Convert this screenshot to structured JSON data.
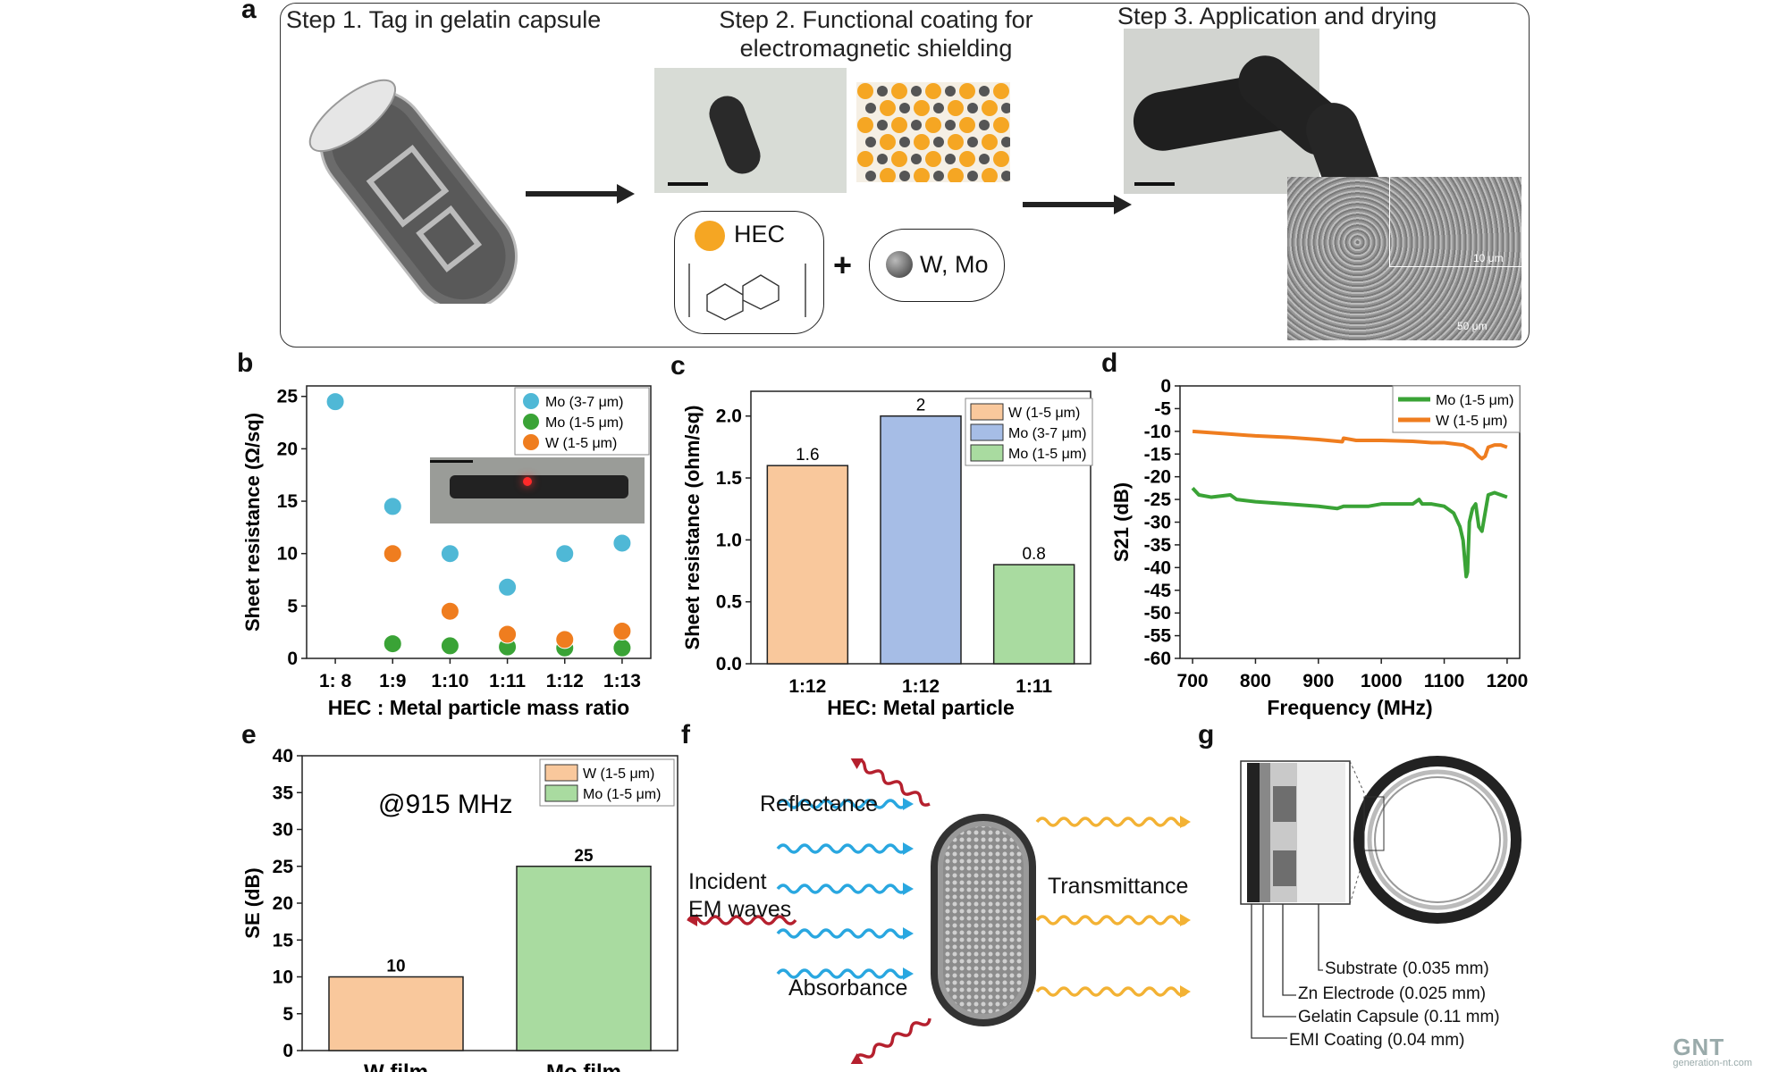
{
  "panel_a": {
    "letter": "a",
    "step1": "Step 1. Tag in gelatin capsule",
    "step2_line1": "Step 2. Functional coating for",
    "step2_line2": "electromagnetic shielding",
    "step3": "Step 3. Application and drying",
    "hec_label": "HEC",
    "plus": "+",
    "metal_label": "W, Mo",
    "sem_inset_scale": "10 μm",
    "sem_scale": "50 μm",
    "colors": {
      "hec": "#f5a623",
      "metal": "#555555",
      "capsule_black": "#2a2a2a"
    }
  },
  "chart_data": [
    {
      "panel": "b",
      "type": "scatter",
      "xlabel": "HEC : Metal particle mass ratio",
      "ylabel": "Sheet resistance (Ω/sq)",
      "categories": [
        "1: 8",
        "1:9",
        "1:10",
        "1:11",
        "1:12",
        "1:13"
      ],
      "ylim": [
        0,
        26
      ],
      "yticks": [
        0,
        5,
        10,
        15,
        20,
        25
      ],
      "legend_position": "top-right",
      "series": [
        {
          "name": "Mo (3-7 μm)",
          "color": "#4fb8d6",
          "values": [
            24.5,
            14.5,
            10,
            6.8,
            10,
            11
          ]
        },
        {
          "name": "Mo (1-5 μm)",
          "color": "#3aa336",
          "values": [
            null,
            1.4,
            1.2,
            1.1,
            1.0,
            1.0
          ]
        },
        {
          "name": "W (1-5 μm)",
          "color": "#ef7d1f",
          "values": [
            null,
            10,
            4.5,
            2.3,
            1.8,
            2.6
          ]
        }
      ]
    },
    {
      "panel": "c",
      "type": "bar",
      "xlabel": "HEC: Metal particle",
      "ylabel": "Sheet resistance (ohm/sq)",
      "categories": [
        "1:12",
        "1:12",
        "1:11"
      ],
      "ylim": [
        0,
        2.2
      ],
      "yticks": [
        "0.0",
        "0.5",
        "1.0",
        "1.5",
        "2.0"
      ],
      "legend_position": "top-right",
      "series": [
        {
          "name": "W (1-5 μm)",
          "color": "#f9c89c",
          "value": 1.6,
          "label": "1.6"
        },
        {
          "name": "Mo (3-7 μm)",
          "color": "#a6bde6",
          "value": 2.0,
          "label": "2"
        },
        {
          "name": "Mo (1-5 μm)",
          "color": "#a9dba0",
          "value": 0.8,
          "label": "0.8"
        }
      ]
    },
    {
      "panel": "d",
      "type": "line",
      "xlabel": "Frequency (MHz)",
      "ylabel": "S21 (dB)",
      "xlim": [
        680,
        1220
      ],
      "ylim": [
        -60,
        0
      ],
      "xticks": [
        700,
        800,
        900,
        1000,
        1100,
        1200
      ],
      "yticks": [
        0,
        -5,
        -10,
        -15,
        -20,
        -25,
        -30,
        -35,
        -40,
        -45,
        -50,
        -55,
        -60
      ],
      "legend_position": "top-right",
      "series": [
        {
          "name": "Mo (1-5 μm)",
          "color": "#3aa336",
          "x": [
            700,
            710,
            730,
            760,
            770,
            800,
            850,
            900,
            930,
            940,
            980,
            1000,
            1050,
            1060,
            1065,
            1080,
            1100,
            1115,
            1125,
            1130,
            1135,
            1137,
            1140,
            1145,
            1150,
            1155,
            1160,
            1165,
            1170,
            1180,
            1190,
            1200
          ],
          "y": [
            -22.5,
            -24,
            -24.5,
            -24,
            -25,
            -25.5,
            -26,
            -26.5,
            -27,
            -26.5,
            -26.5,
            -26,
            -26,
            -25,
            -26,
            -26,
            -26.5,
            -28,
            -31,
            -34,
            -42,
            -41,
            -30,
            -27,
            -26,
            -31,
            -32,
            -28,
            -24,
            -23.5,
            -24,
            -24.5
          ]
        },
        {
          "name": "W (1-5 μm)",
          "color": "#ef7d1f",
          "x": [
            700,
            750,
            800,
            850,
            900,
            938,
            940,
            960,
            1000,
            1050,
            1080,
            1100,
            1130,
            1145,
            1155,
            1160,
            1165,
            1170,
            1180,
            1190,
            1200
          ],
          "y": [
            -10,
            -10.5,
            -11,
            -11.3,
            -11.8,
            -12.3,
            -11.5,
            -12,
            -12,
            -12.2,
            -12.5,
            -12.5,
            -13,
            -14,
            -15.5,
            -16,
            -15.5,
            -13.5,
            -13,
            -13,
            -13.5
          ]
        }
      ]
    },
    {
      "panel": "e",
      "type": "bar",
      "xlabel": "",
      "ylabel": "SE (dB)",
      "annotation": "@915 MHz",
      "categories": [
        "W film",
        "Mo film"
      ],
      "ylim": [
        0,
        40
      ],
      "yticks": [
        0,
        5,
        10,
        15,
        20,
        25,
        30,
        35,
        40
      ],
      "legend_position": "top-right",
      "series": [
        {
          "name": "W (1-5 μm)",
          "color": "#f9c89c",
          "value": 10,
          "label": "10"
        },
        {
          "name": "Mo (1-5 μm)",
          "color": "#a9dba0",
          "value": 25,
          "label": "25"
        }
      ]
    }
  ],
  "panel_f": {
    "letter": "f",
    "reflectance": "Reflectance",
    "incident_line1": "Incident",
    "incident_line2": "EM waves",
    "transmittance": "Transmittance",
    "absorbance": "Absorbance",
    "colors": {
      "incident": "#29a7e0",
      "reflected": "#b5202e",
      "transmitted": "#f3b234"
    }
  },
  "panel_g": {
    "letter": "g",
    "layers": [
      "Substrate (0.035 mm)",
      "Zn Electrode (0.025 mm)",
      "Gelatin Capsule (0.11 mm)",
      "EMI Coating (0.04 mm)"
    ]
  },
  "watermark": {
    "logo": "GNT",
    "site": "generation-nt.com"
  }
}
